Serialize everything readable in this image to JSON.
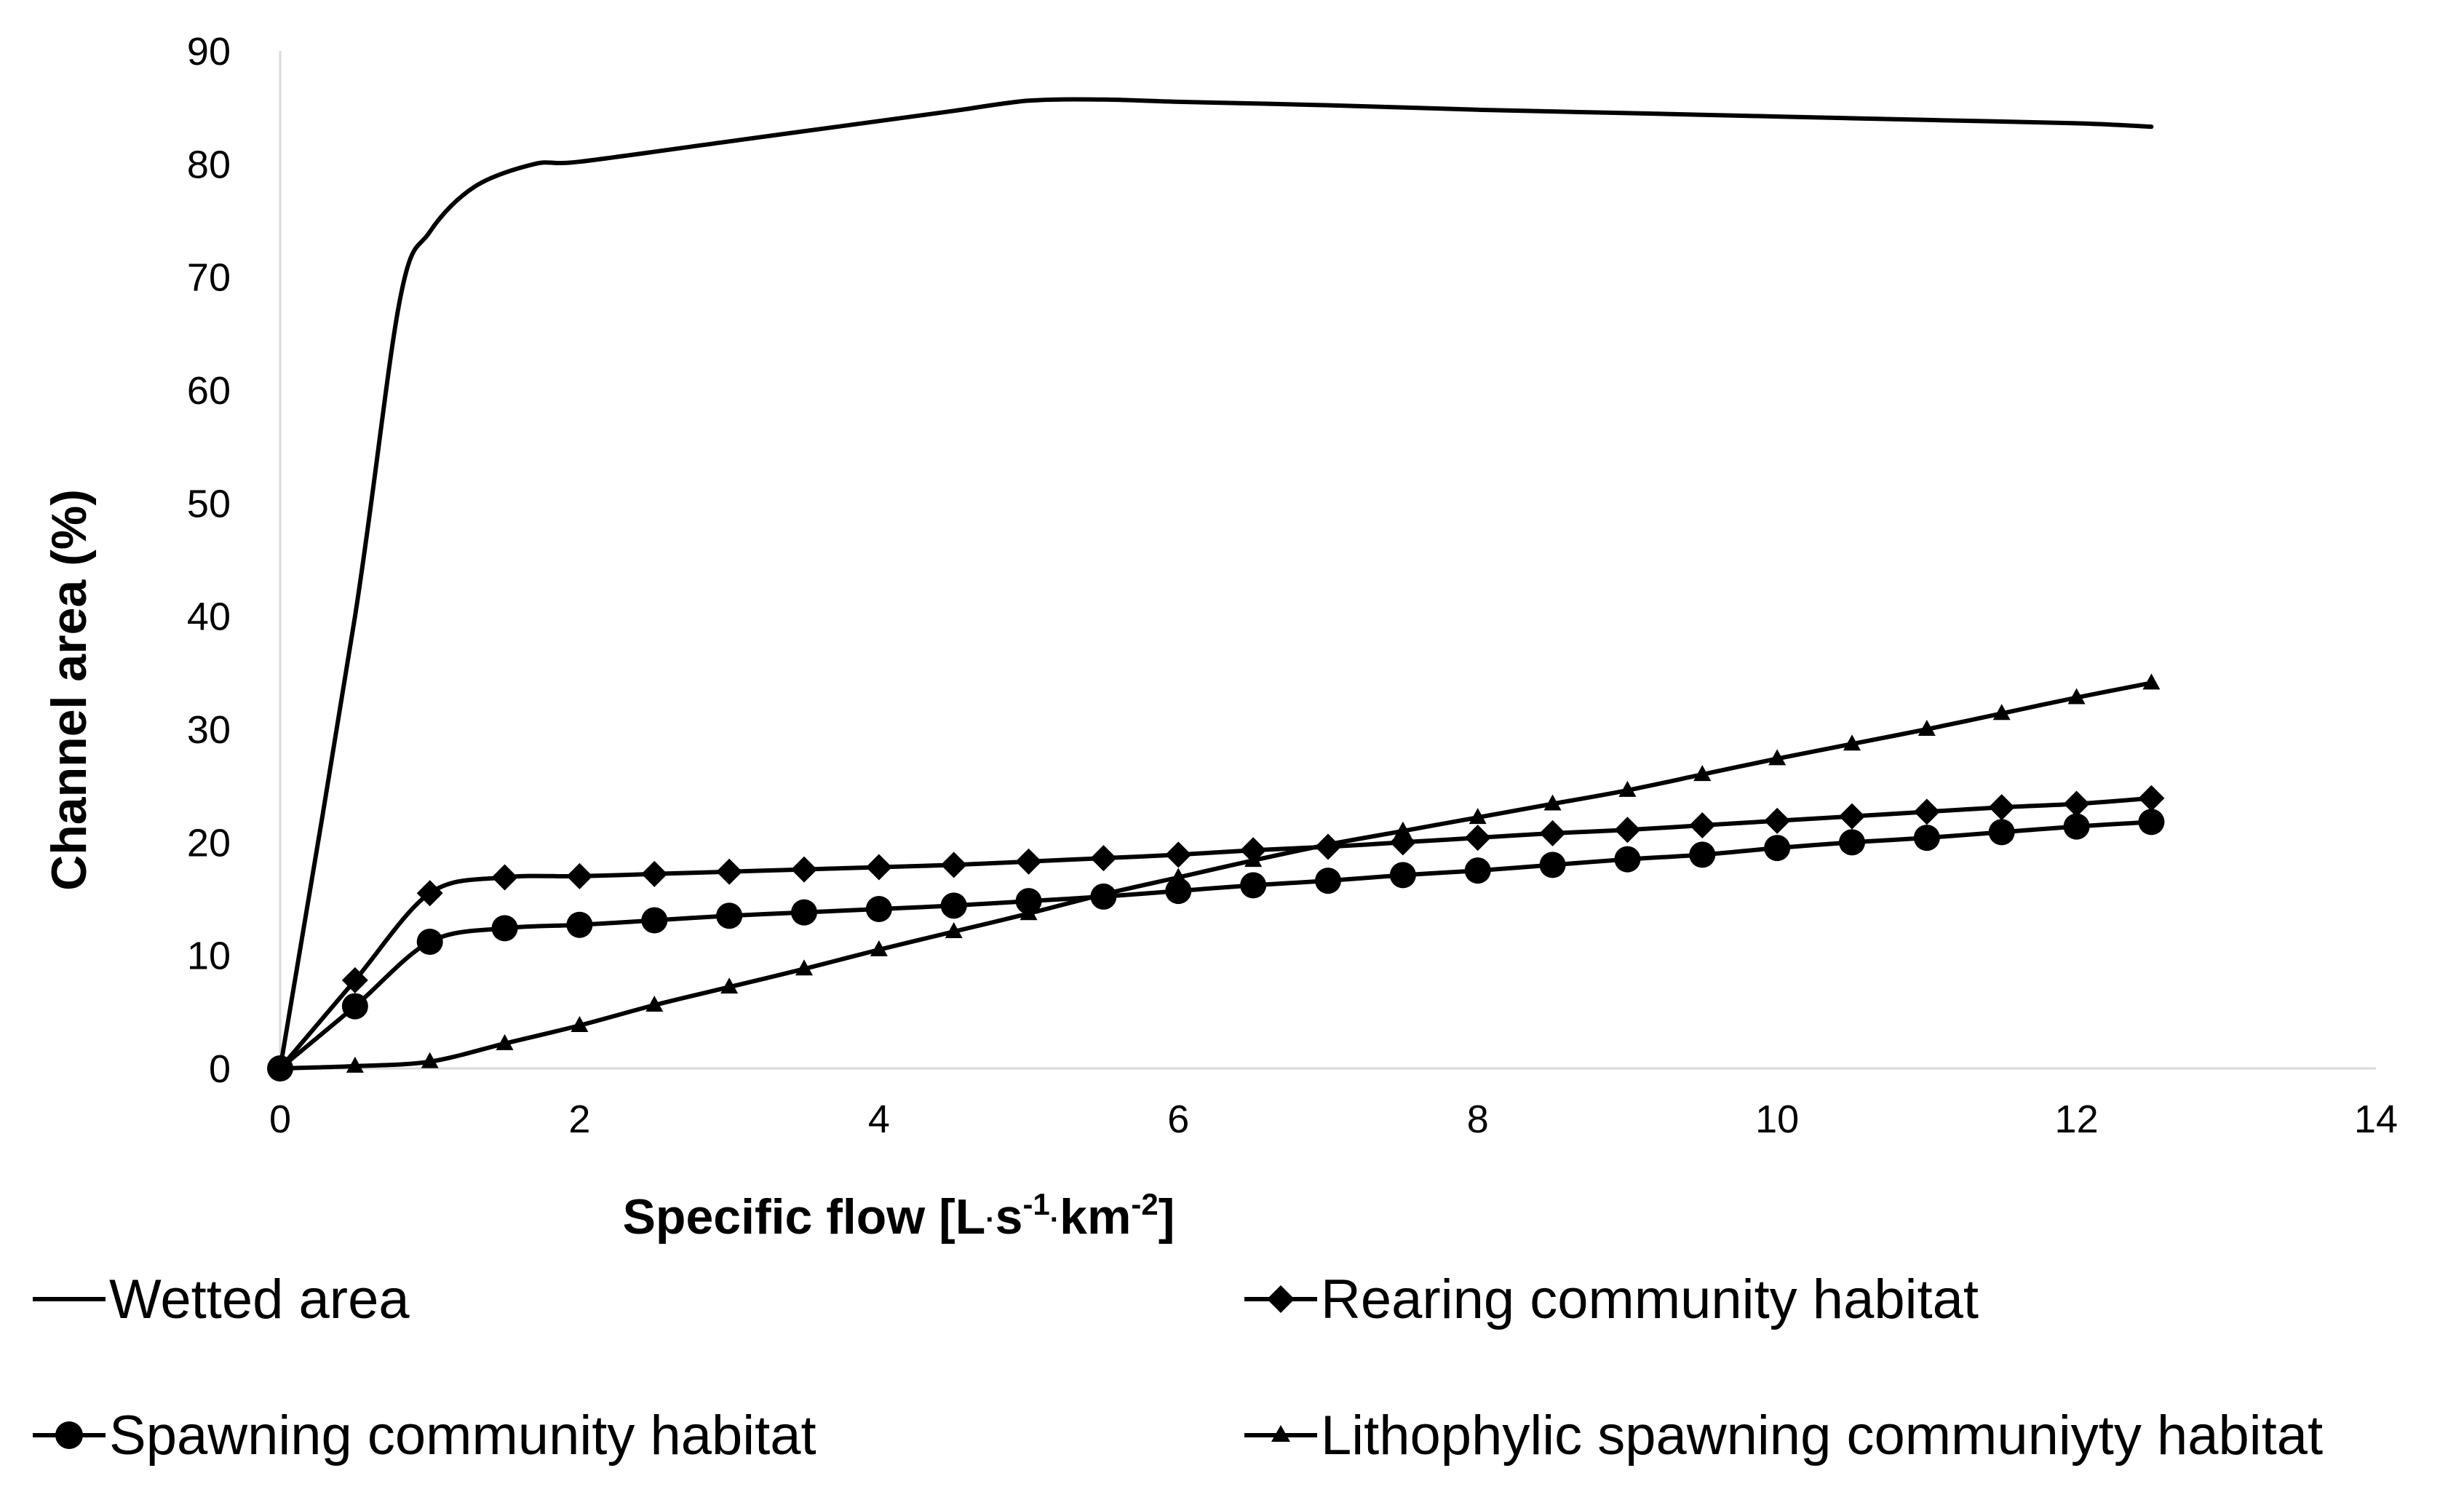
{
  "chart_data": {
    "type": "line",
    "title": "",
    "xlabel": "Specific flow [L·s⁻¹·km⁻²]",
    "xlabel_parts": {
      "base": "Specific flow [L",
      "dot1": "·",
      "s": "s",
      "exp1": "-1",
      "dot2": "·",
      "km": "km",
      "exp2": "-2",
      "close": "]"
    },
    "ylabel": "Channel area (%)",
    "xlim": [
      0,
      14
    ],
    "ylim": [
      0,
      90
    ],
    "x_ticks": [
      "0",
      "2",
      "4",
      "6",
      "8",
      "10",
      "12",
      "14"
    ],
    "y_ticks": [
      "0",
      "10",
      "20",
      "30",
      "40",
      "50",
      "60",
      "70",
      "80",
      "90"
    ],
    "grid": false,
    "legend_position": "bottom",
    "series": [
      {
        "name": "Wetted area",
        "marker": "none",
        "x": [
          0,
          0.5,
          0.8,
          1.0,
          1.3,
          1.7,
          2.0,
          3.0,
          4.0,
          4.5,
          5.0,
          5.5,
          6.0,
          7.0,
          8.0,
          9.0,
          10.0,
          11.0,
          12.0,
          12.5
        ],
        "y": [
          0,
          40,
          68,
          74,
          78,
          80,
          80.2,
          82,
          83.8,
          84.7,
          85.6,
          85.7,
          85.5,
          85.2,
          84.8,
          84.5,
          84.2,
          83.9,
          83.6,
          83.3
        ]
      },
      {
        "name": "Rearing community habitat",
        "marker": "diamond",
        "x": [
          0,
          0.5,
          1.0,
          1.5,
          2.0,
          2.5,
          3.0,
          3.5,
          4.0,
          4.5,
          5.0,
          5.5,
          6.0,
          6.5,
          7.0,
          7.5,
          8.0,
          8.5,
          9.0,
          9.5,
          10.0,
          10.5,
          11.0,
          11.5,
          12.0,
          12.5
        ],
        "y": [
          0,
          7.8,
          15.5,
          16.9,
          17.0,
          17.2,
          17.4,
          17.6,
          17.8,
          18.0,
          18.3,
          18.6,
          18.9,
          19.3,
          19.6,
          20.0,
          20.4,
          20.8,
          21.1,
          21.5,
          21.9,
          22.3,
          22.7,
          23.1,
          23.4,
          23.9
        ]
      },
      {
        "name": "Spawning community habitat",
        "marker": "circle",
        "x": [
          0,
          0.5,
          1.0,
          1.5,
          2.0,
          2.5,
          3.0,
          3.5,
          4.0,
          4.5,
          5.0,
          5.5,
          6.0,
          6.5,
          7.0,
          7.5,
          8.0,
          8.5,
          9.0,
          9.5,
          10.0,
          10.5,
          11.0,
          11.5,
          12.0,
          12.5
        ],
        "y": [
          0,
          5.5,
          11.2,
          12.4,
          12.7,
          13.1,
          13.5,
          13.8,
          14.1,
          14.4,
          14.8,
          15.2,
          15.7,
          16.2,
          16.6,
          17.1,
          17.5,
          18.0,
          18.5,
          18.9,
          19.5,
          20.0,
          20.4,
          20.9,
          21.4,
          21.8
        ]
      },
      {
        "name": "Lithophylic spawning communiyty habitat",
        "marker": "triangle",
        "x": [
          0,
          0.5,
          1.0,
          1.5,
          2.0,
          2.5,
          3.0,
          3.5,
          4.0,
          4.5,
          5.0,
          5.5,
          6.0,
          6.5,
          7.0,
          7.5,
          8.0,
          8.5,
          9.0,
          9.5,
          10.0,
          10.5,
          11.0,
          11.5,
          12.0,
          12.5
        ],
        "y": [
          0,
          0.2,
          0.6,
          2.2,
          3.8,
          5.6,
          7.2,
          8.8,
          10.5,
          12.1,
          13.7,
          15.4,
          16.9,
          18.4,
          19.8,
          21.0,
          22.2,
          23.4,
          24.6,
          26.0,
          27.4,
          28.7,
          30.0,
          31.4,
          32.8,
          34.1
        ]
      }
    ]
  }
}
